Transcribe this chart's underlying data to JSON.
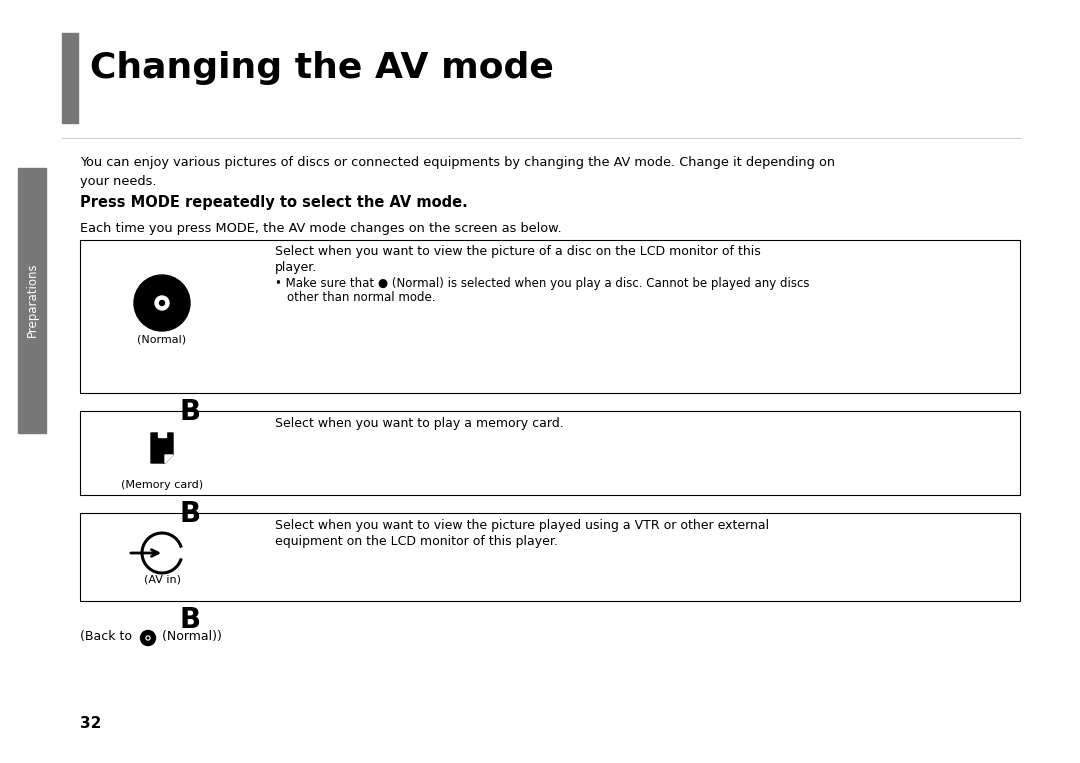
{
  "title": "Changing the AV mode",
  "title_bar_color": "#787878",
  "bg_color": "#ffffff",
  "text_color": "#000000",
  "sidebar_color": "#787878",
  "sidebar_label": "Preparations",
  "page_number": "32",
  "intro_text": "You can enjoy various pictures of discs or connected equipments by changing the AV mode. Change it depending on\nyour needs.",
  "bold_heading": "Press MODE repeatedly to select the AV mode.",
  "sub_heading": "Each time you press MODE, the AV mode changes on the screen as below.",
  "box1_icon_label": "(Normal)",
  "box1_text_line1": "Select when you want to view the picture of a disc on the LCD monitor of this",
  "box1_text_line2": "player.",
  "box1_bullet": "• Make sure that ● (Normal) is selected when you play a disc. Cannot be played any discs",
  "box1_bullet2": "other than normal mode.",
  "arrow_label": "B",
  "box2_icon_label": "(Memory card)",
  "box2_text": "Select when you want to play a memory card.",
  "box3_icon_label": "(AV in)",
  "box3_text_line1": "Select when you want to view the picture played using a VTR or other external",
  "box3_text_line2": "equipment on the LCD monitor of this player.",
  "back_text_pre": "(Back to ",
  "back_text_post": " (Normal))"
}
